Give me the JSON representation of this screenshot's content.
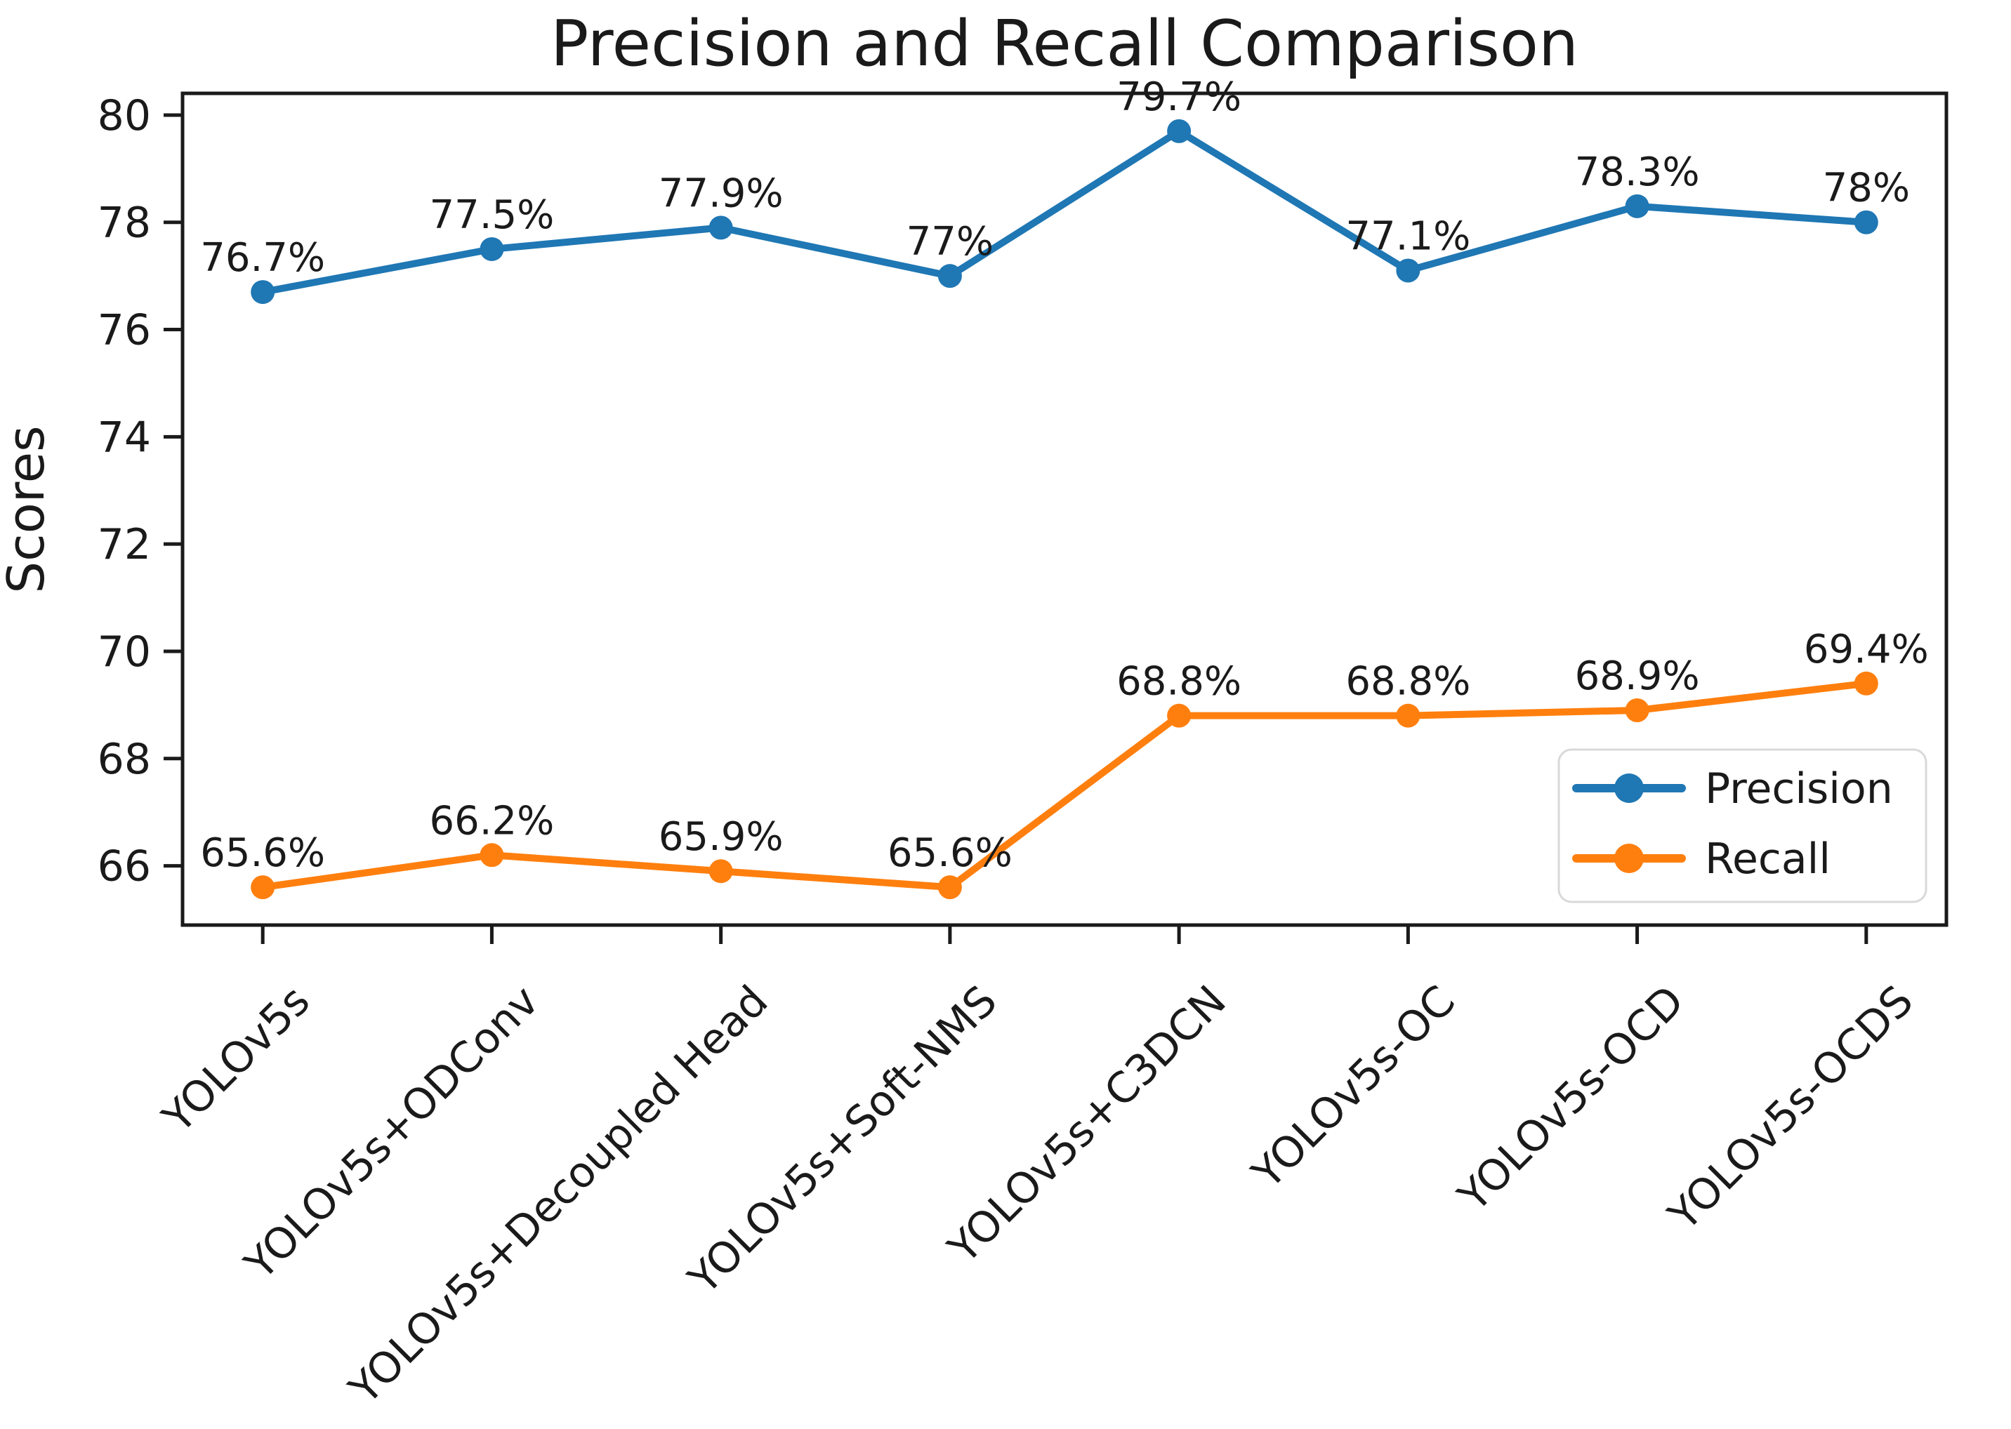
{
  "chart_data": {
    "type": "line",
    "title": "Precision and Recall Comparison",
    "xlabel": "",
    "ylabel": "Scores",
    "categories": [
      "YOLOv5s",
      "YOLOv5s+ODConv",
      "YOLOv5s+Decoupled Head",
      "YOLOv5s+Soft-NMS",
      "YOLOv5s+C3DCN",
      "YOLOv5s-OC",
      "YOLOv5s-OCD",
      "YOLOv5s-OCDS"
    ],
    "series": [
      {
        "name": "Precision",
        "color": "#1f77b4",
        "values": [
          76.7,
          77.5,
          77.9,
          77,
          79.7,
          77.1,
          78.3,
          78
        ],
        "point_labels": [
          "76.7%",
          "77.5%",
          "77.9%",
          "77%",
          "79.7%",
          "77.1%",
          "78.3%",
          "78%"
        ]
      },
      {
        "name": "Recall",
        "color": "#ff7f0e",
        "values": [
          65.6,
          66.2,
          65.9,
          65.6,
          68.8,
          68.8,
          68.9,
          69.4
        ],
        "point_labels": [
          "65.6%",
          "66.2%",
          "65.9%",
          "65.6%",
          "68.8%",
          "68.8%",
          "68.9%",
          "69.4%"
        ]
      }
    ],
    "yticks": [
      66,
      68,
      70,
      72,
      74,
      76,
      78,
      80
    ],
    "ylim": [
      64.895,
      80.405
    ],
    "x_margin": 0.35,
    "grid": false,
    "legend": {
      "position": "lower right",
      "entries": [
        "Precision",
        "Recall"
      ]
    },
    "axis_color": "#1a1a1a",
    "background_color": "#ffffff"
  }
}
